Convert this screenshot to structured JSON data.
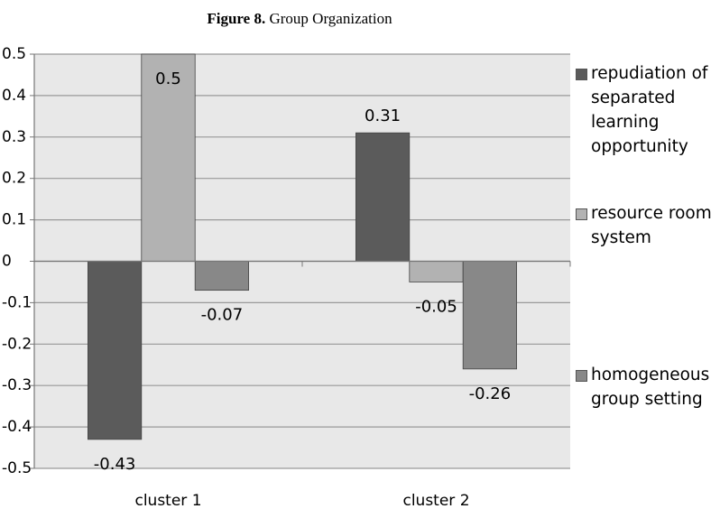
{
  "chart_data": {
    "type": "bar",
    "figure_label": "Figure 8.",
    "title": "Group Organization",
    "categories": [
      "cluster 1",
      "cluster 2"
    ],
    "series": [
      {
        "name": "repudiation of separated learning opportunity",
        "color": "#5b5b5b",
        "values": [
          -0.43,
          0.31
        ]
      },
      {
        "name": "resource room system",
        "color": "#b2b2b2",
        "values": [
          0.5,
          -0.05
        ]
      },
      {
        "name": "homogeneous group setting",
        "color": "#888888",
        "values": [
          -0.07,
          -0.26
        ]
      }
    ],
    "ylim": [
      -0.5,
      0.5
    ],
    "yticks": [
      -0.5,
      -0.4,
      -0.3,
      -0.2,
      -0.1,
      0,
      0.1,
      0.2,
      0.3,
      0.4,
      0.5
    ],
    "grid": true,
    "legend": "right"
  }
}
